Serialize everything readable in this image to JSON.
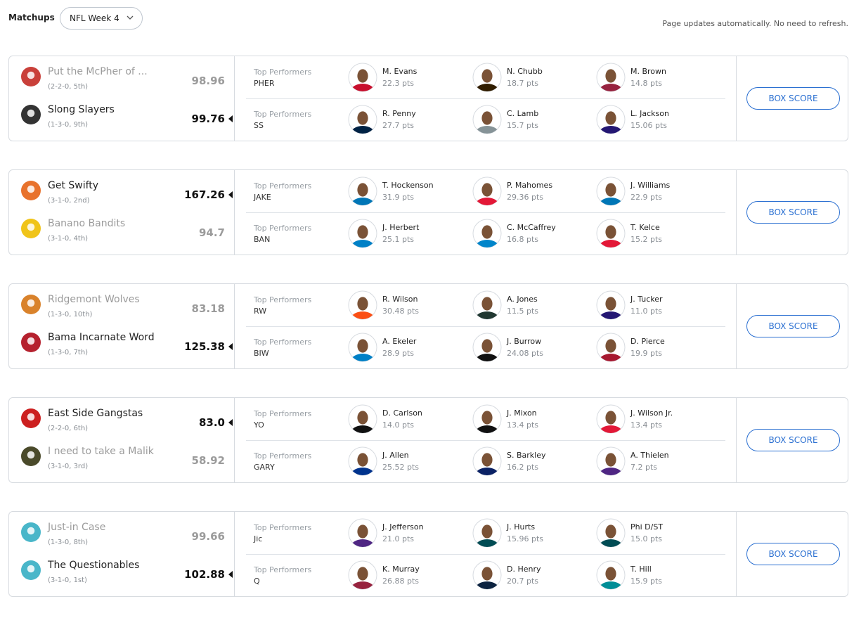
{
  "header": {
    "title": "Matchups",
    "week": "NFL Week 4",
    "notice": "Page updates automatically. No need to refresh."
  },
  "matchups": [
    {
      "button": "BOX SCORE",
      "teams": [
        {
          "name": "Put the McPher of ...",
          "record": "(2-2-0, 5th)",
          "score": "98.96",
          "logo_color": "#c9403a",
          "label": "Top Performers",
          "abbrev": "PHER",
          "players": [
            {
              "name": "M. Evans",
              "pts": "22.3 pts",
              "color": "#c8102e"
            },
            {
              "name": "N. Chubb",
              "pts": "18.7 pts",
              "color": "#311d00"
            },
            {
              "name": "M. Brown",
              "pts": "14.8 pts",
              "color": "#97233f"
            }
          ]
        },
        {
          "name": "Slong Slayers",
          "record": "(1-3-0, 9th)",
          "score": "99.76",
          "logo_color": "#333333",
          "label": "Top Performers",
          "abbrev": "SS",
          "players": [
            {
              "name": "R. Penny",
              "pts": "27.7 pts",
              "color": "#002244"
            },
            {
              "name": "C. Lamb",
              "pts": "15.7 pts",
              "color": "#869397"
            },
            {
              "name": "L. Jackson",
              "pts": "15.06 pts",
              "color": "#241773"
            }
          ]
        }
      ]
    },
    {
      "button": "BOX SCORE",
      "teams": [
        {
          "name": "Get Swifty",
          "record": "(3-1-0, 2nd)",
          "score": "167.26",
          "logo_color": "#e8722c",
          "label": "Top Performers",
          "abbrev": "JAKE",
          "players": [
            {
              "name": "T. Hockenson",
              "pts": "31.9 pts",
              "color": "#0076b6"
            },
            {
              "name": "P. Mahomes",
              "pts": "29.36 pts",
              "color": "#e31837"
            },
            {
              "name": "J. Williams",
              "pts": "22.9 pts",
              "color": "#0076b6"
            }
          ]
        },
        {
          "name": "Banano Bandits",
          "record": "(3-1-0, 4th)",
          "score": "94.7",
          "logo_color": "#f0c419",
          "label": "Top Performers",
          "abbrev": "BAN",
          "players": [
            {
              "name": "J. Herbert",
              "pts": "25.1 pts",
              "color": "#0080c6"
            },
            {
              "name": "C. McCaffrey",
              "pts": "16.8 pts",
              "color": "#0085ca"
            },
            {
              "name": "T. Kelce",
              "pts": "15.2 pts",
              "color": "#e31837"
            }
          ]
        }
      ]
    },
    {
      "button": "BOX SCORE",
      "teams": [
        {
          "name": "Ridgemont Wolves",
          "record": "(1-3-0, 10th)",
          "score": "83.18",
          "logo_color": "#d9822b",
          "label": "Top Performers",
          "abbrev": "RW",
          "players": [
            {
              "name": "R. Wilson",
              "pts": "30.48 pts",
              "color": "#fb4f14"
            },
            {
              "name": "A. Jones",
              "pts": "11.5 pts",
              "color": "#203731"
            },
            {
              "name": "J. Tucker",
              "pts": "11.0 pts",
              "color": "#241773"
            }
          ]
        },
        {
          "name": "Bama Incarnate Word",
          "record": "(1-3-0, 7th)",
          "score": "125.38",
          "logo_color": "#b5212e",
          "label": "Top Performers",
          "abbrev": "BIW",
          "players": [
            {
              "name": "A. Ekeler",
              "pts": "28.9 pts",
              "color": "#0080c6"
            },
            {
              "name": "J. Burrow",
              "pts": "24.08 pts",
              "color": "#111111"
            },
            {
              "name": "D. Pierce",
              "pts": "19.9 pts",
              "color": "#a71930"
            }
          ]
        }
      ]
    },
    {
      "button": "BOX SCORE",
      "teams": [
        {
          "name": "East Side Gangstas",
          "record": "(2-2-0, 6th)",
          "score": "83.0",
          "logo_color": "#cc1f1f",
          "label": "Top Performers",
          "abbrev": "YO",
          "players": [
            {
              "name": "D. Carlson",
              "pts": "14.0 pts",
              "color": "#111111"
            },
            {
              "name": "J. Mixon",
              "pts": "13.4 pts",
              "color": "#111111"
            },
            {
              "name": "J. Wilson Jr.",
              "pts": "13.4 pts",
              "color": "#e31837"
            }
          ]
        },
        {
          "name": "I need to take a Malik",
          "record": "(3-1-0, 3rd)",
          "score": "58.92",
          "logo_color": "#4a4a2a",
          "label": "Top Performers",
          "abbrev": "GARY",
          "players": [
            {
              "name": "J. Allen",
              "pts": "25.52 pts",
              "color": "#00338d"
            },
            {
              "name": "S. Barkley",
              "pts": "16.2 pts",
              "color": "#0b2265"
            },
            {
              "name": "A. Thielen",
              "pts": "7.2 pts",
              "color": "#4f2683"
            }
          ]
        }
      ]
    },
    {
      "button": "BOX SCORE",
      "teams": [
        {
          "name": "Just-in Case",
          "record": "(1-3-0, 8th)",
          "score": "99.66",
          "logo_color": "#49b6c9",
          "label": "Top Performers",
          "abbrev": "Jic",
          "players": [
            {
              "name": "J. Jefferson",
              "pts": "21.0 pts",
              "color": "#4f2683"
            },
            {
              "name": "J. Hurts",
              "pts": "15.96 pts",
              "color": "#004c54"
            },
            {
              "name": "Phi D/ST",
              "pts": "15.0 pts",
              "color": "#004c54"
            }
          ]
        },
        {
          "name": "The Questionables",
          "record": "(3-1-0, 1st)",
          "score": "102.88",
          "logo_color": "#49b6c9",
          "label": "Top Performers",
          "abbrev": "Q",
          "players": [
            {
              "name": "K. Murray",
              "pts": "26.88 pts",
              "color": "#97233f"
            },
            {
              "name": "D. Henry",
              "pts": "20.7 pts",
              "color": "#0c2340"
            },
            {
              "name": "T. Hill",
              "pts": "15.9 pts",
              "color": "#008e97"
            }
          ]
        }
      ]
    }
  ]
}
